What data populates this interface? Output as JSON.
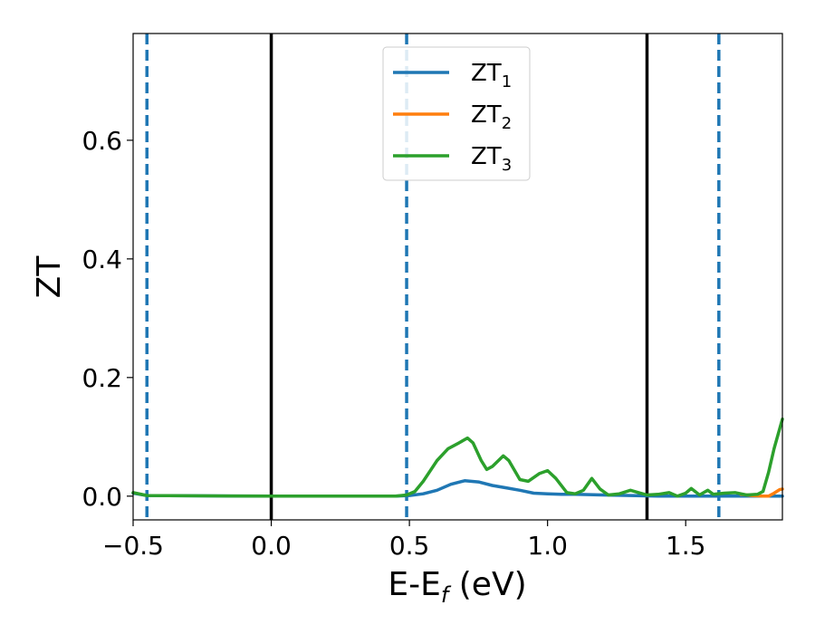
{
  "chart_data": {
    "type": "line",
    "xlabel": "E-E",
    "xlabel_sub": "f",
    "xlabel_unit": " (eV)",
    "ylabel": "ZT",
    "xlim": [
      -0.5,
      1.85
    ],
    "ylim": [
      -0.04,
      0.78
    ],
    "x_ticks": [
      -0.5,
      0.0,
      0.5,
      1.0,
      1.5
    ],
    "x_tick_labels": [
      "−0.5",
      "0.0",
      "0.5",
      "1.0",
      "1.5"
    ],
    "y_ticks": [
      0.0,
      0.2,
      0.4,
      0.6
    ],
    "y_tick_labels": [
      "0.0",
      "0.2",
      "0.4",
      "0.6"
    ],
    "grid": false,
    "legend_position": "top-center",
    "vertical_lines": [
      {
        "x": -0.45,
        "style": "dashed",
        "color": "#1f77b4"
      },
      {
        "x": 0.0,
        "style": "solid",
        "color": "#000000"
      },
      {
        "x": 0.49,
        "style": "dashed",
        "color": "#1f77b4"
      },
      {
        "x": 1.36,
        "style": "solid",
        "color": "#000000"
      },
      {
        "x": 1.62,
        "style": "dashed",
        "color": "#1f77b4"
      }
    ],
    "series": [
      {
        "name": "ZT",
        "sub": "1",
        "color": "#1f77b4",
        "points": [
          [
            -0.5,
            0.005
          ],
          [
            -0.45,
            0.001
          ],
          [
            0.0,
            0.0
          ],
          [
            0.45,
            0.0
          ],
          [
            0.5,
            0.001
          ],
          [
            0.55,
            0.004
          ],
          [
            0.6,
            0.01
          ],
          [
            0.65,
            0.02
          ],
          [
            0.7,
            0.026
          ],
          [
            0.75,
            0.024
          ],
          [
            0.8,
            0.018
          ],
          [
            0.85,
            0.014
          ],
          [
            0.9,
            0.01
          ],
          [
            0.95,
            0.005
          ],
          [
            1.0,
            0.004
          ],
          [
            1.05,
            0.003
          ],
          [
            1.1,
            0.003
          ],
          [
            1.2,
            0.002
          ],
          [
            1.3,
            0.001
          ],
          [
            1.4,
            0.0
          ],
          [
            1.5,
            0.0
          ],
          [
            1.6,
            0.0
          ],
          [
            1.7,
            0.0
          ],
          [
            1.8,
            0.0
          ],
          [
            1.85,
            0.0
          ]
        ]
      },
      {
        "name": "ZT",
        "sub": "2",
        "color": "#ff7f0e",
        "points": [
          [
            1.7,
            0.003
          ],
          [
            1.74,
            0.001
          ],
          [
            1.78,
            0.0
          ],
          [
            1.8,
            0.0
          ],
          [
            1.82,
            0.005
          ],
          [
            1.84,
            0.011
          ],
          [
            1.85,
            0.012
          ]
        ]
      },
      {
        "name": "ZT",
        "sub": "3",
        "color": "#2ca02c",
        "points": [
          [
            -0.5,
            0.006
          ],
          [
            -0.45,
            0.001
          ],
          [
            0.0,
            0.0
          ],
          [
            0.45,
            0.0
          ],
          [
            0.49,
            0.002
          ],
          [
            0.52,
            0.008
          ],
          [
            0.55,
            0.025
          ],
          [
            0.6,
            0.06
          ],
          [
            0.64,
            0.08
          ],
          [
            0.68,
            0.09
          ],
          [
            0.71,
            0.098
          ],
          [
            0.73,
            0.09
          ],
          [
            0.76,
            0.06
          ],
          [
            0.78,
            0.045
          ],
          [
            0.8,
            0.05
          ],
          [
            0.84,
            0.068
          ],
          [
            0.86,
            0.06
          ],
          [
            0.9,
            0.028
          ],
          [
            0.93,
            0.025
          ],
          [
            0.97,
            0.038
          ],
          [
            1.0,
            0.043
          ],
          [
            1.03,
            0.03
          ],
          [
            1.07,
            0.006
          ],
          [
            1.1,
            0.004
          ],
          [
            1.13,
            0.01
          ],
          [
            1.16,
            0.03
          ],
          [
            1.19,
            0.012
          ],
          [
            1.22,
            0.002
          ],
          [
            1.26,
            0.004
          ],
          [
            1.3,
            0.01
          ],
          [
            1.33,
            0.006
          ],
          [
            1.36,
            0.002
          ],
          [
            1.4,
            0.003
          ],
          [
            1.44,
            0.006
          ],
          [
            1.47,
            0.0
          ],
          [
            1.5,
            0.005
          ],
          [
            1.52,
            0.013
          ],
          [
            1.55,
            0.002
          ],
          [
            1.58,
            0.01
          ],
          [
            1.6,
            0.003
          ],
          [
            1.64,
            0.005
          ],
          [
            1.68,
            0.006
          ],
          [
            1.72,
            0.002
          ],
          [
            1.76,
            0.003
          ],
          [
            1.78,
            0.008
          ],
          [
            1.8,
            0.04
          ],
          [
            1.82,
            0.08
          ],
          [
            1.85,
            0.13
          ]
        ]
      }
    ]
  }
}
